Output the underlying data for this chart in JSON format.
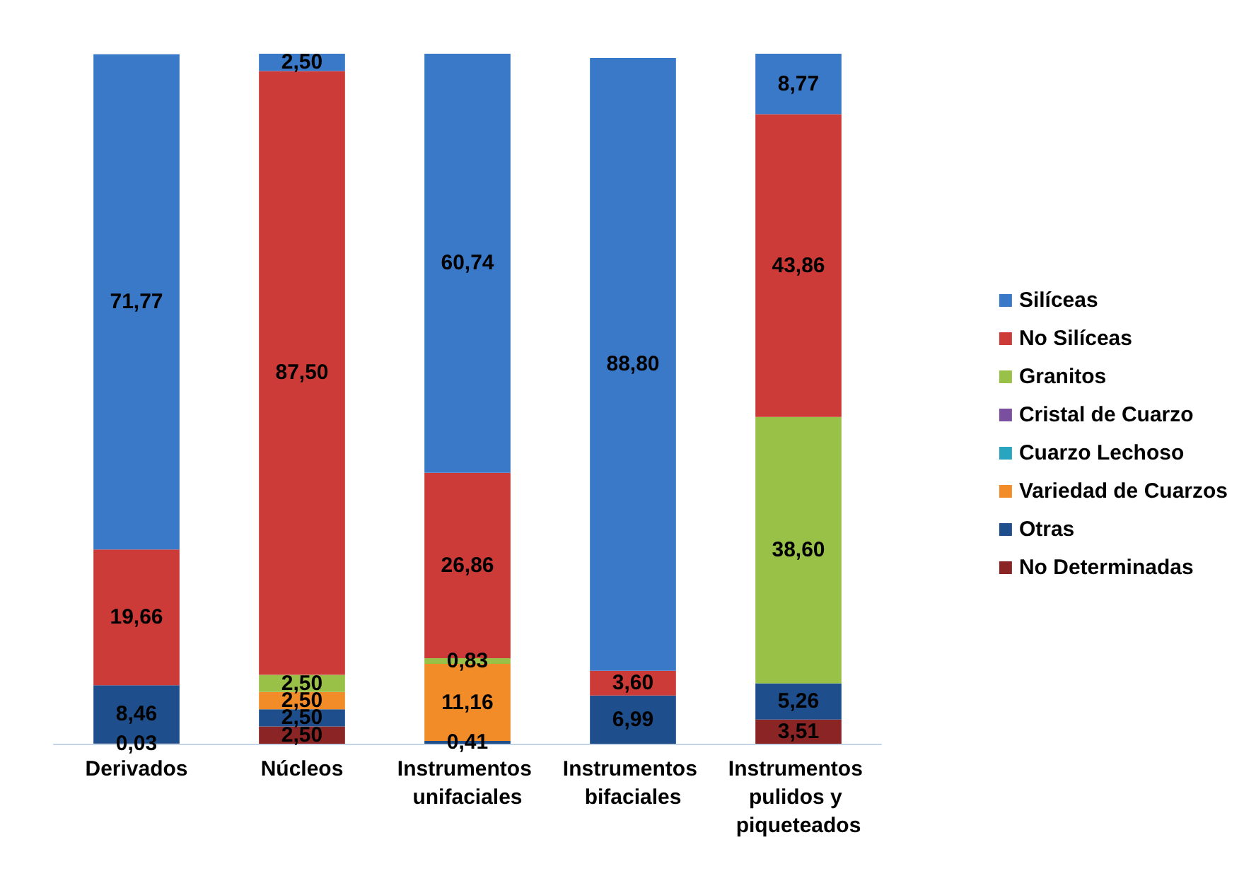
{
  "chart_data": {
    "type": "bar",
    "stacked": true,
    "categories": [
      "Derivados",
      "Núcleos",
      "Instrumentos unifaciales",
      "Instrumentos bifaciales",
      "Instrumentos pulidos y piqueteados"
    ],
    "ylim": [
      0,
      100
    ],
    "tick_labels": "x",
    "legend": "right",
    "series": [
      {
        "name": "No Determinadas",
        "color": "#8b2525",
        "values": [
          0.03,
          2.5,
          null,
          null,
          3.51
        ],
        "value_labels": [
          "0,03",
          "2,50",
          null,
          null,
          "3,51"
        ]
      },
      {
        "name": "Otras",
        "color": "#1f4e8c",
        "values": [
          8.46,
          2.5,
          0.41,
          6.99,
          5.26
        ],
        "value_labels": [
          "8,46",
          "2,50",
          "0,41",
          "6,99",
          "5,26"
        ]
      },
      {
        "name": "Variedad de Cuarzos",
        "color": "#f28c28",
        "values": [
          null,
          2.5,
          11.16,
          null,
          null
        ],
        "value_labels": [
          null,
          "2,50",
          "11,16",
          null,
          null
        ]
      },
      {
        "name": "Cuarzo Lechoso",
        "color": "#2aa5c0",
        "values": [
          null,
          null,
          null,
          null,
          null
        ],
        "value_labels": [
          null,
          null,
          null,
          null,
          null
        ]
      },
      {
        "name": "Cristal de Cuarzo",
        "color": "#7a4f9f",
        "values": [
          null,
          null,
          null,
          null,
          null
        ],
        "value_labels": [
          null,
          null,
          null,
          null,
          null
        ]
      },
      {
        "name": "Granitos",
        "color": "#9ac147",
        "values": [
          null,
          2.5,
          0.83,
          null,
          38.6
        ],
        "value_labels": [
          null,
          "2,50",
          "0,83",
          null,
          "38,60"
        ]
      },
      {
        "name": "No Silíceas",
        "color": "#cc3b38",
        "values": [
          19.66,
          87.5,
          26.86,
          3.6,
          43.86
        ],
        "value_labels": [
          "19,66",
          "87,50",
          "26,86",
          "3,60",
          "43,86"
        ]
      },
      {
        "name": "Silíceas",
        "color": "#3a78c8",
        "values": [
          71.77,
          2.5,
          60.74,
          88.8,
          8.77
        ],
        "value_labels": [
          "71,77",
          "2,50",
          "60,74",
          "88,80",
          "8,77"
        ]
      }
    ]
  }
}
